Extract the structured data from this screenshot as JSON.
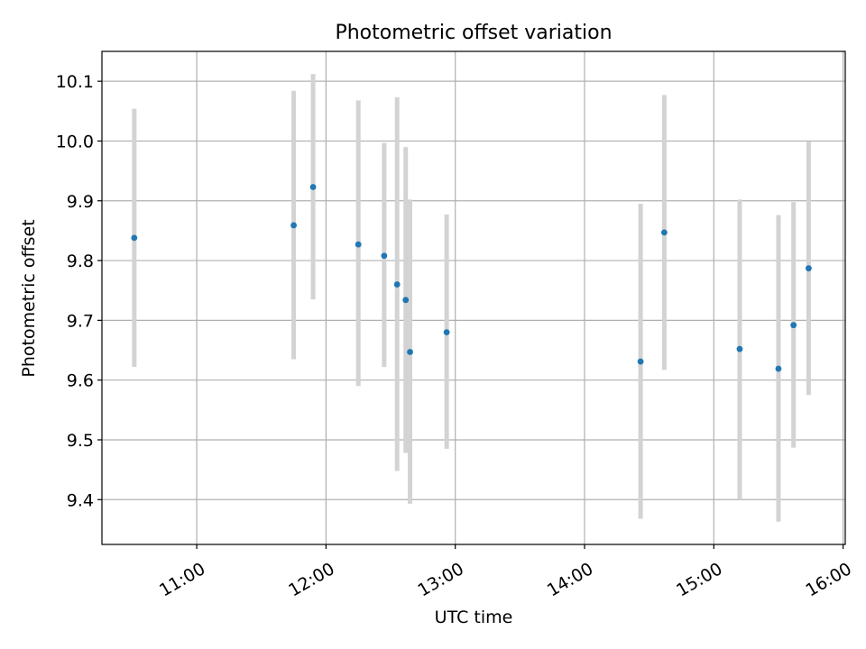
{
  "chart_data": {
    "type": "scatter",
    "title": "Photometric offset variation",
    "xlabel": "UTC time",
    "ylabel": "Photometric offset",
    "x_ticks": [
      "11:00",
      "12:00",
      "13:00",
      "14:00",
      "15:00",
      "16:00"
    ],
    "y_ticks": [
      "9.4",
      "9.5",
      "9.6",
      "9.7",
      "9.8",
      "9.9",
      "10.0",
      "10.1"
    ],
    "xlim": [
      "10:16",
      "16:01"
    ],
    "ylim": [
      9.325,
      10.15
    ],
    "grid": true,
    "errorbar_color": "#d3d3d3",
    "point_color": "#1f77b4",
    "points": [
      {
        "time": "10:31",
        "y": 9.838,
        "ylow": 9.622,
        "yhigh": 10.054
      },
      {
        "time": "11:45",
        "y": 9.859,
        "ylow": 9.635,
        "yhigh": 10.084
      },
      {
        "time": "11:54",
        "y": 9.923,
        "ylow": 9.735,
        "yhigh": 10.112
      },
      {
        "time": "12:15",
        "y": 9.827,
        "ylow": 9.59,
        "yhigh": 10.068
      },
      {
        "time": "12:27",
        "y": 9.808,
        "ylow": 9.622,
        "yhigh": 9.997
      },
      {
        "time": "12:33",
        "y": 9.76,
        "ylow": 9.448,
        "yhigh": 10.073
      },
      {
        "time": "12:37",
        "y": 9.734,
        "ylow": 9.478,
        "yhigh": 9.99
      },
      {
        "time": "12:39",
        "y": 9.647,
        "ylow": 9.393,
        "yhigh": 9.902
      },
      {
        "time": "12:56",
        "y": 9.68,
        "ylow": 9.485,
        "yhigh": 9.877
      },
      {
        "time": "14:26",
        "y": 9.631,
        "ylow": 9.368,
        "yhigh": 9.895
      },
      {
        "time": "14:37",
        "y": 9.847,
        "ylow": 9.617,
        "yhigh": 10.077
      },
      {
        "time": "15:12",
        "y": 9.652,
        "ylow": 9.4,
        "yhigh": 9.902
      },
      {
        "time": "15:30",
        "y": 9.619,
        "ylow": 9.363,
        "yhigh": 9.876
      },
      {
        "time": "15:37",
        "y": 9.692,
        "ylow": 9.487,
        "yhigh": 9.898
      },
      {
        "time": "15:44",
        "y": 9.787,
        "ylow": 9.575,
        "yhigh": 9.999
      }
    ]
  }
}
